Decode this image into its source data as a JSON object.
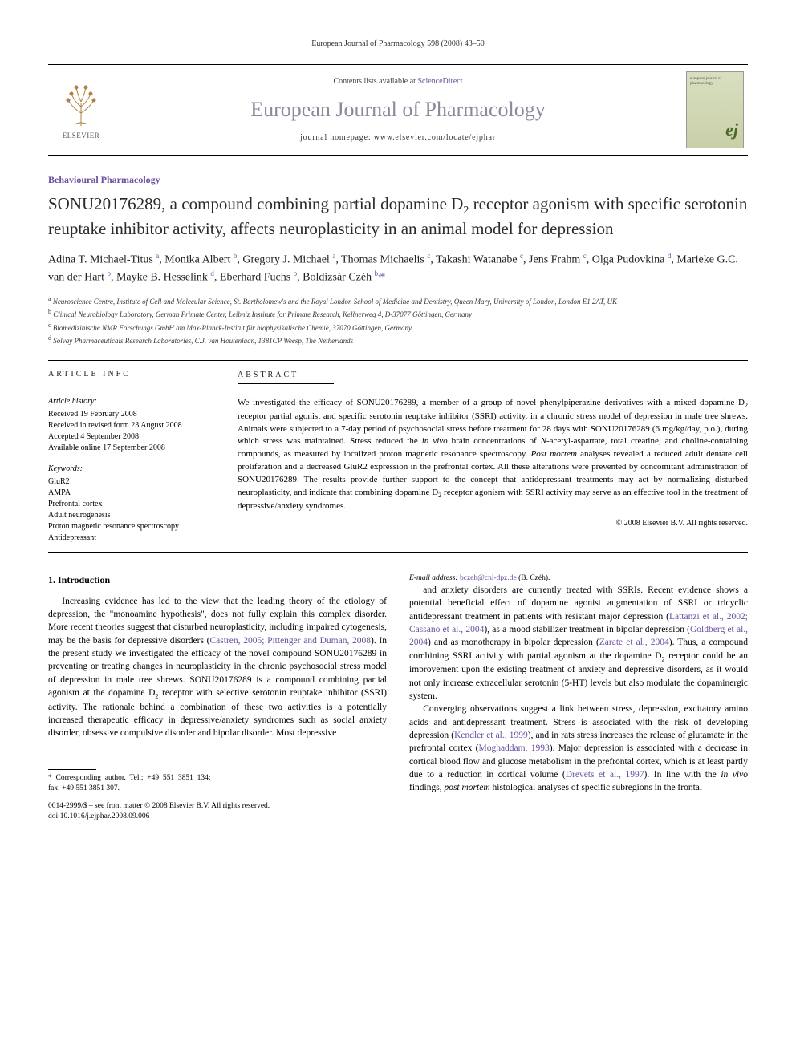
{
  "header": {
    "journal_citation": "European Journal of Pharmacology 598 (2008) 43–50",
    "contents_prefix": "Contents lists available at ",
    "contents_link": "ScienceDirect",
    "journal_title": "European Journal of Pharmacology",
    "homepage_prefix": "journal homepage: ",
    "homepage_url": "www.elsevier.com/locate/ejphar",
    "publisher_label": "ELSEVIER",
    "cover_ej": "ej",
    "cover_small_title": "european journal of pharmacology"
  },
  "article": {
    "section": "Behavioural Pharmacology",
    "title_html": "SONU20176289, a compound combining partial dopamine D<sub>2</sub> receptor agonism with specific serotonin reuptake inhibitor activity, affects neuroplasticity in an animal model for depression",
    "authors_html": "Adina T. Michael-Titus <sup>a</sup>, Monika Albert <sup>b</sup>, Gregory J. Michael <sup>a</sup>, Thomas Michaelis <sup>c</sup>, Takashi Watanabe <sup>c</sup>, Jens Frahm <sup>c</sup>, Olga Pudovkina <sup>d</sup>, Marieke G.C. van der Hart <sup>b</sup>, Mayke B. Hesselink <sup>d</sup>, Eberhard Fuchs <sup>b</sup>, Boldizsár Czéh <sup>b,</sup><span class=\"star\">*</span>",
    "affiliations": [
      {
        "sup": "a",
        "text": "Neuroscience Centre, Institute of Cell and Molecular Science, St. Bartholomew's and the Royal London School of Medicine and Dentistry, Queen Mary, University of London, London E1 2AT, UK"
      },
      {
        "sup": "b",
        "text": "Clinical Neurobiology Laboratory, German Primate Center, Leibniz Institute for Primate Research, Kellnerweg 4, D-37077 Göttingen, Germany"
      },
      {
        "sup": "c",
        "text": "Biomedizinische NMR Forschungs GmbH am Max-Planck-Institut für biophysikalische Chemie, 37070 Göttingen, Germany"
      },
      {
        "sup": "d",
        "text": "Solvay Pharmaceuticals Research Laboratories, C.J. van Houtenlaan, 1381CP Weesp, The Netherlands"
      }
    ]
  },
  "info": {
    "heading": "ARTICLE INFO",
    "history_label": "Article history:",
    "history": [
      "Received 19 February 2008",
      "Received in revised form 23 August 2008",
      "Accepted 4 September 2008",
      "Available online 17 September 2008"
    ],
    "keywords_label": "Keywords:",
    "keywords": [
      "GluR2",
      "AMPA",
      "Prefrontal cortex",
      "Adult neurogenesis",
      "Proton magnetic resonance spectroscopy",
      "Antidepressant"
    ]
  },
  "abstract": {
    "heading": "ABSTRACT",
    "text_html": "We investigated the efficacy of SONU20176289, a member of a group of novel phenylpiperazine derivatives with a mixed dopamine D<sub>2</sub> receptor partial agonist and specific serotonin reuptake inhibitor (SSRI) activity, in a chronic stress model of depression in male tree shrews. Animals were subjected to a 7-day period of psychosocial stress before treatment for 28 days with SONU20176289 (6 mg/kg/day, p.o.), during which stress was maintained. Stress reduced the <em>in vivo</em> brain concentrations of <em>N</em>-acetyl-aspartate, total creatine, and choline-containing compounds, as measured by localized proton magnetic resonance spectroscopy. <em>Post mortem</em> analyses revealed a reduced adult dentate cell proliferation and a decreased GluR2 expression in the prefrontal cortex. All these alterations were prevented by concomitant administration of SONU20176289. The results provide further support to the concept that antidepressant treatments may act by normalizing disturbed neuroplasticity, and indicate that combining dopamine D<sub>2</sub> receptor agonism with SSRI activity may serve as an effective tool in the treatment of depressive/anxiety syndromes.",
    "copyright": "© 2008 Elsevier B.V. All rights reserved."
  },
  "body": {
    "section_heading": "1. Introduction",
    "p1_html": "Increasing evidence has led to the view that the leading theory of the etiology of depression, the \"monoamine hypothesis\", does not fully explain this complex disorder. More recent theories suggest that disturbed neuroplasticity, including impaired cytogenesis, may be the basis for depressive disorders (<a class=\"ref\" href=\"#\">Castren, 2005; Pittenger and Duman, 2008</a>). In the present study we investigated the efficacy of the novel compound SONU20176289 in preventing or treating changes in neuroplasticity in the chronic psychosocial stress model of depression in male tree shrews. SONU20176289 is a compound combining partial agonism at the dopamine D<sub>2</sub> receptor with selective serotonin reuptake inhibitor (SSRI) activity. The rationale behind a combination of these two activities is a potentially increased therapeutic efficacy in depressive/anxiety syndromes such as social anxiety disorder, obsessive compulsive disorder and bipolar disorder. Most depressive",
    "p2_html": "and anxiety disorders are currently treated with SSRIs. Recent evidence shows a potential beneficial effect of dopamine agonist augmentation of SSRI or tricyclic antidepressant treatment in patients with resistant major depression (<a class=\"ref\" href=\"#\">Lattanzi et al., 2002; Cassano et al., 2004</a>), as a mood stabilizer treatment in bipolar depression (<a class=\"ref\" href=\"#\">Goldberg et al., 2004</a>) and as monotherapy in bipolar depression (<a class=\"ref\" href=\"#\">Zarate et al., 2004</a>). Thus, a compound combining SSRI activity with partial agonism at the dopamine D<sub>2</sub> receptor could be an improvement upon the existing treatment of anxiety and depressive disorders, as it would not only increase extracellular serotonin (5-HT) levels but also modulate the dopaminergic system.",
    "p3_html": "Converging observations suggest a link between stress, depression, excitatory amino acids and antidepressant treatment. Stress is associated with the risk of developing depression (<a class=\"ref\" href=\"#\">Kendler et al., 1999</a>), and in rats stress increases the release of glutamate in the prefrontal cortex (<a class=\"ref\" href=\"#\">Moghaddam, 1993</a>). Major depression is associated with a decrease in cortical blood flow and glucose metabolism in the prefrontal cortex, which is at least partly due to a reduction in cortical volume (<a class=\"ref\" href=\"#\">Drevets et al., 1997</a>). In line with the <em>in vivo</em> findings, <em>post mortem</em> histological analyses of specific subregions in the frontal"
  },
  "corr": {
    "star": "*",
    "line1": "Corresponding author. Tel.: +49 551 3851 134; fax: +49 551 3851 307.",
    "email_label": "E-mail address:",
    "email": "bczeh@cnl-dpz.de",
    "email_who": "(B. Czéh)."
  },
  "footer": {
    "issn_line": "0014-2999/$ – see front matter © 2008 Elsevier B.V. All rights reserved.",
    "doi_line": "doi:10.1016/j.ejphar.2008.09.006"
  },
  "colors": {
    "link": "#6b4fa0",
    "journal_title": "#8a8a9a",
    "cover_bg_top": "#d8dfc0",
    "cover_bg_bot": "#c8cfa8",
    "cover_ej": "#4a6a2a"
  }
}
